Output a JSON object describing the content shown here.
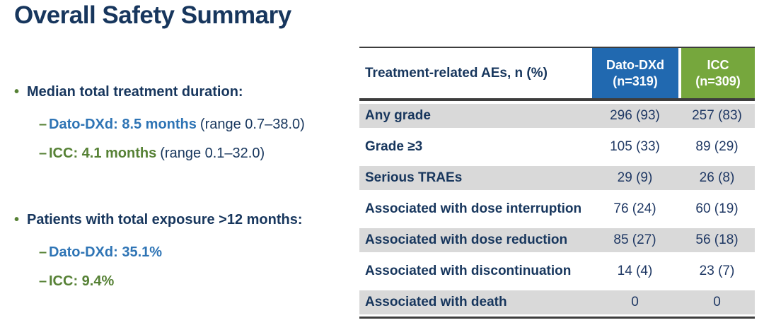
{
  "slide": {
    "title": "Overall Safety Summary"
  },
  "glyphs": {
    "bullet": "•",
    "dash": "–"
  },
  "colors": {
    "navy_text": "#17365D",
    "blue_text": "#2E74B5",
    "green_text": "#568135",
    "header_blue_bg": "#2169B0",
    "header_green_bg": "#76A73D",
    "row_gray_bg": "#D9D9D9",
    "rule_dark": "#3d3d3d"
  },
  "bullets": [
    {
      "heading": "Median total treatment duration:",
      "items": [
        {
          "label": "Dato-DXd: 8.5 months",
          "suffix": "(range 0.7–38.0)"
        },
        {
          "label": "ICC: 4.1 months",
          "suffix": "(range 0.1–32.0)"
        }
      ]
    },
    {
      "heading": "Patients with total exposure >12 months:",
      "items": [
        {
          "label": "Dato-DXd: 35.1%",
          "suffix": ""
        },
        {
          "label": "ICC: 9.4%",
          "suffix": ""
        }
      ]
    }
  ],
  "table": {
    "header": {
      "label": "Treatment-related AEs, n (%)",
      "dato_line1": "Dato-DXd",
      "dato_line2": "(n=319)",
      "icc_line1": "ICC",
      "icc_line2": "(n=309)"
    },
    "rows": [
      {
        "label": "Any grade",
        "dato": "296 (93)",
        "icc": "257 (83)"
      },
      {
        "label": "Grade ≥3",
        "dato": "105 (33)",
        "icc": "89 (29)"
      },
      {
        "label": "Serious TRAEs",
        "dato": "29 (9)",
        "icc": "26 (8)"
      },
      {
        "label": "Associated with dose interruption",
        "dato": "76 (24)",
        "icc": "60 (19)"
      },
      {
        "label": "Associated with dose reduction",
        "dato": "85 (27)",
        "icc": "56 (18)"
      },
      {
        "label": "Associated with discontinuation",
        "dato": "14 (4)",
        "icc": "23 (7)"
      },
      {
        "label": "Associated with death",
        "dato": "0",
        "icc": "0"
      }
    ]
  }
}
